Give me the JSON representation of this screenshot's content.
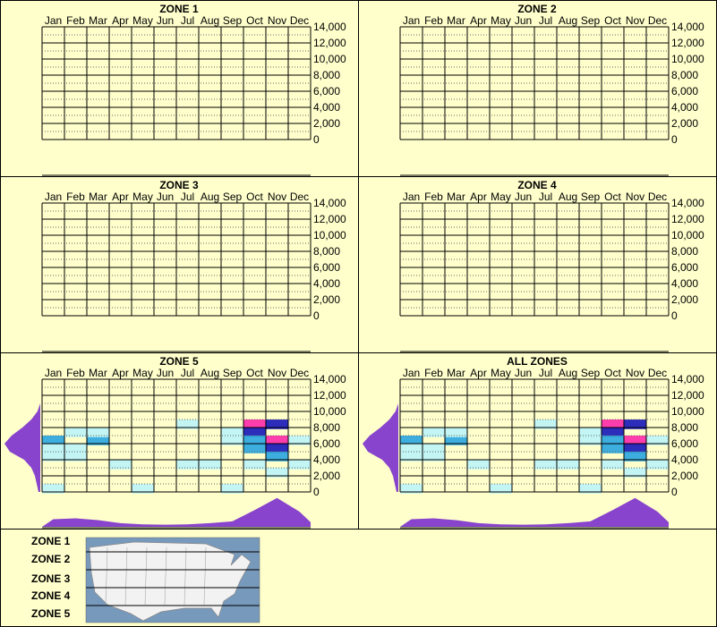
{
  "chart_data": {
    "type": "heatmap",
    "months": [
      "Jan",
      "Feb",
      "Mar",
      "Apr",
      "May",
      "Jun",
      "Jul",
      "Aug",
      "Sep",
      "Oct",
      "Nov",
      "Dec"
    ],
    "y_ticks": [
      "14,000",
      "12,000",
      "10,000",
      "8,000",
      "6,000",
      "4,000",
      "2,000",
      "0"
    ],
    "ylim": [
      0,
      14000
    ],
    "colors": {
      "background": "#ffffcc",
      "panel_border": "#000000",
      "profile_fill": "#8844cc",
      "heat_low": "#bff4f4",
      "heat_mid": "#33aadd",
      "heat_high": "#2222bb",
      "heat_peak": "#ff33aa",
      "map_water": "#7799bb",
      "map_land": "#f2f2f2"
    },
    "panels": [
      {
        "title": "ZONE 1",
        "has_data": false
      },
      {
        "title": "ZONE 2",
        "has_data": false
      },
      {
        "title": "ZONE 3",
        "has_data": false
      },
      {
        "title": "ZONE 4",
        "has_data": false
      },
      {
        "title": "ZONE 5",
        "has_data": true
      },
      {
        "title": "ALL ZONES",
        "has_data": true
      }
    ],
    "heat_cells": [
      {
        "month": 10,
        "elev": 8000,
        "level": 4
      },
      {
        "month": 10,
        "elev": 7000,
        "level": 3
      },
      {
        "month": 11,
        "elev": 8000,
        "level": 3
      },
      {
        "month": 11,
        "elev": 6000,
        "level": 4
      },
      {
        "month": 11,
        "elev": 5000,
        "level": 3
      },
      {
        "month": 10,
        "elev": 5000,
        "level": 2
      },
      {
        "month": 11,
        "elev": 4000,
        "level": 2
      },
      {
        "month": 11,
        "elev": 2000,
        "level": 1
      },
      {
        "month": 9,
        "elev": 7000,
        "level": 1
      },
      {
        "month": 9,
        "elev": 6000,
        "level": 1
      },
      {
        "month": 10,
        "elev": 6000,
        "level": 2
      },
      {
        "month": 1,
        "elev": 6000,
        "level": 2
      },
      {
        "month": 1,
        "elev": 5000,
        "level": 1
      },
      {
        "month": 2,
        "elev": 7000,
        "level": 1
      },
      {
        "month": 2,
        "elev": 5000,
        "level": 1
      },
      {
        "month": 3,
        "elev": 6000,
        "level": 2
      },
      {
        "month": 3,
        "elev": 7000,
        "level": 1
      },
      {
        "month": 1,
        "elev": 4000,
        "level": 1
      },
      {
        "month": 2,
        "elev": 4000,
        "level": 1
      },
      {
        "month": 4,
        "elev": 3000,
        "level": 1
      },
      {
        "month": 7,
        "elev": 3000,
        "level": 1
      },
      {
        "month": 8,
        "elev": 3000,
        "level": 1
      },
      {
        "month": 10,
        "elev": 3000,
        "level": 1
      },
      {
        "month": 12,
        "elev": 3000,
        "level": 1
      },
      {
        "month": 12,
        "elev": 6000,
        "level": 1
      },
      {
        "month": 7,
        "elev": 8000,
        "level": 1
      },
      {
        "month": 1,
        "elev": 0,
        "level": 1
      },
      {
        "month": 5,
        "elev": 0,
        "level": 1
      },
      {
        "month": 9,
        "elev": 0,
        "level": 1
      }
    ],
    "monthly_profile": [
      0.25,
      0.28,
      0.22,
      0.12,
      0.08,
      0.07,
      0.08,
      0.12,
      0.18,
      0.55,
      0.95,
      0.5
    ],
    "elevation_profile": [
      {
        "elev": 0,
        "v": 0.05
      },
      {
        "elev": 1000,
        "v": 0.1
      },
      {
        "elev": 2000,
        "v": 0.15
      },
      {
        "elev": 3000,
        "v": 0.25
      },
      {
        "elev": 4000,
        "v": 0.45
      },
      {
        "elev": 5000,
        "v": 0.85
      },
      {
        "elev": 6000,
        "v": 1.0
      },
      {
        "elev": 7000,
        "v": 0.8
      },
      {
        "elev": 8000,
        "v": 0.5
      },
      {
        "elev": 9000,
        "v": 0.25
      },
      {
        "elev": 10000,
        "v": 0.08
      },
      {
        "elev": 11000,
        "v": 0.0
      }
    ]
  },
  "legend": {
    "zones": [
      "ZONE 1",
      "ZONE 2",
      "ZONE 3",
      "ZONE 4",
      "ZONE 5"
    ]
  }
}
